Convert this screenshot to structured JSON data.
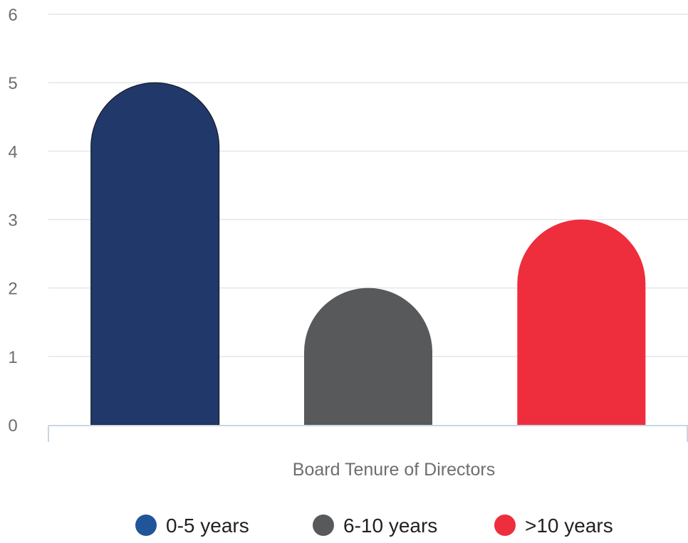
{
  "chart_data": {
    "type": "bar",
    "categories": [
      "0-5 years",
      "6-10 years",
      ">10 years"
    ],
    "values": [
      5,
      2,
      3
    ],
    "colors": [
      "#21386b",
      "#58595b",
      "#ee2d3d"
    ],
    "legend_marker_colors": [
      "#21559a",
      "#58595b",
      "#ee2d3d"
    ],
    "xlabel": "Board Tenure of Directors",
    "ylabel": "",
    "ylim": [
      0,
      6
    ],
    "yticks": [
      "0",
      "1",
      "2",
      "3",
      "4",
      "5",
      "6"
    ],
    "grid": true,
    "legend": {
      "position": "bottom",
      "entries": [
        "0-5 years",
        "6-10 years",
        ">10 years"
      ]
    },
    "bar_style": "rounded-top"
  }
}
